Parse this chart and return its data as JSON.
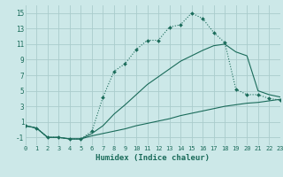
{
  "xlabel": "Humidex (Indice chaleur)",
  "bg_color": "#cce8e8",
  "grid_color": "#aacccc",
  "line_color": "#1a6b5a",
  "xlim": [
    0,
    23
  ],
  "ylim": [
    -2,
    16
  ],
  "xticks": [
    0,
    1,
    2,
    3,
    4,
    5,
    6,
    7,
    8,
    9,
    10,
    11,
    12,
    13,
    14,
    15,
    16,
    17,
    18,
    19,
    20,
    21,
    22,
    23
  ],
  "yticks": [
    -1,
    1,
    3,
    5,
    7,
    9,
    11,
    13,
    15
  ],
  "curve_dot_x": [
    0,
    1,
    2,
    3,
    4,
    5,
    6,
    7,
    8,
    9,
    10,
    11,
    12,
    13,
    14,
    15,
    16,
    17,
    18,
    19,
    20,
    21,
    22,
    23
  ],
  "curve_dot_y": [
    0.5,
    0.2,
    -1.0,
    -1.0,
    -1.2,
    -1.2,
    -0.2,
    4.2,
    7.5,
    8.5,
    10.3,
    11.5,
    11.5,
    13.2,
    13.5,
    15.0,
    14.3,
    12.5,
    11.2,
    5.2,
    4.5,
    4.5,
    4.0,
    3.8
  ],
  "curve_mid_x": [
    0,
    1,
    2,
    3,
    4,
    5,
    6,
    7,
    8,
    9,
    10,
    11,
    12,
    13,
    14,
    15,
    16,
    17,
    18,
    19,
    20,
    21,
    22,
    23
  ],
  "curve_mid_y": [
    0.5,
    0.2,
    -1.0,
    -1.0,
    -1.2,
    -1.2,
    -0.5,
    0.5,
    2.0,
    3.2,
    4.5,
    5.8,
    6.8,
    7.8,
    8.8,
    9.5,
    10.2,
    10.8,
    11.0,
    10.0,
    9.5,
    5.0,
    4.5,
    4.2
  ],
  "curve_low_x": [
    0,
    1,
    2,
    3,
    4,
    5,
    6,
    7,
    8,
    9,
    10,
    11,
    12,
    13,
    14,
    15,
    16,
    17,
    18,
    19,
    20,
    21,
    22,
    23
  ],
  "curve_low_y": [
    0.5,
    0.2,
    -1.0,
    -1.0,
    -1.2,
    -1.2,
    -0.8,
    -0.5,
    -0.2,
    0.1,
    0.5,
    0.8,
    1.1,
    1.4,
    1.8,
    2.1,
    2.4,
    2.7,
    3.0,
    3.2,
    3.4,
    3.5,
    3.7,
    3.9
  ]
}
